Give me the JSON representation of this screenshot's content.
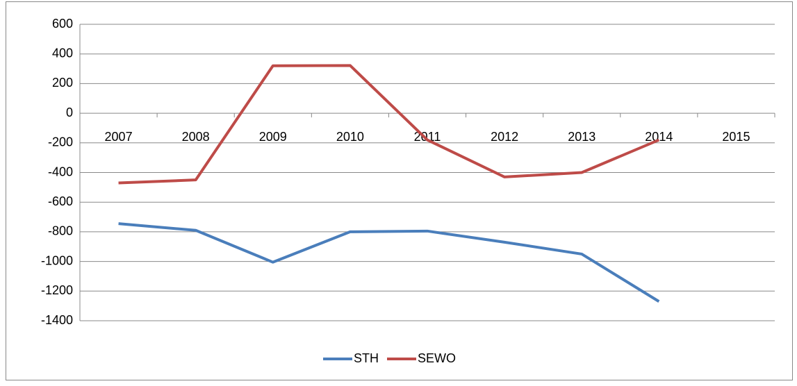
{
  "chart_data": {
    "type": "line",
    "categories": [
      "2007",
      "2008",
      "2009",
      "2010",
      "2011",
      "2012",
      "2013",
      "2014",
      "2015"
    ],
    "series": [
      {
        "name": "STH",
        "color": "#4a7ebb",
        "values": [
          -745,
          -790,
          -1005,
          -800,
          -795,
          -870,
          -950,
          -1270,
          null
        ]
      },
      {
        "name": "SEWO",
        "color": "#be4b48",
        "values": [
          -470,
          -450,
          320,
          322,
          -180,
          -430,
          -400,
          -180,
          null
        ]
      }
    ],
    "ylim": [
      -1400,
      600
    ],
    "yticks": [
      -1400,
      -1200,
      -1000,
      -800,
      -600,
      -400,
      -200,
      0,
      200,
      400,
      600
    ],
    "grid": true,
    "legend": "bottom"
  }
}
